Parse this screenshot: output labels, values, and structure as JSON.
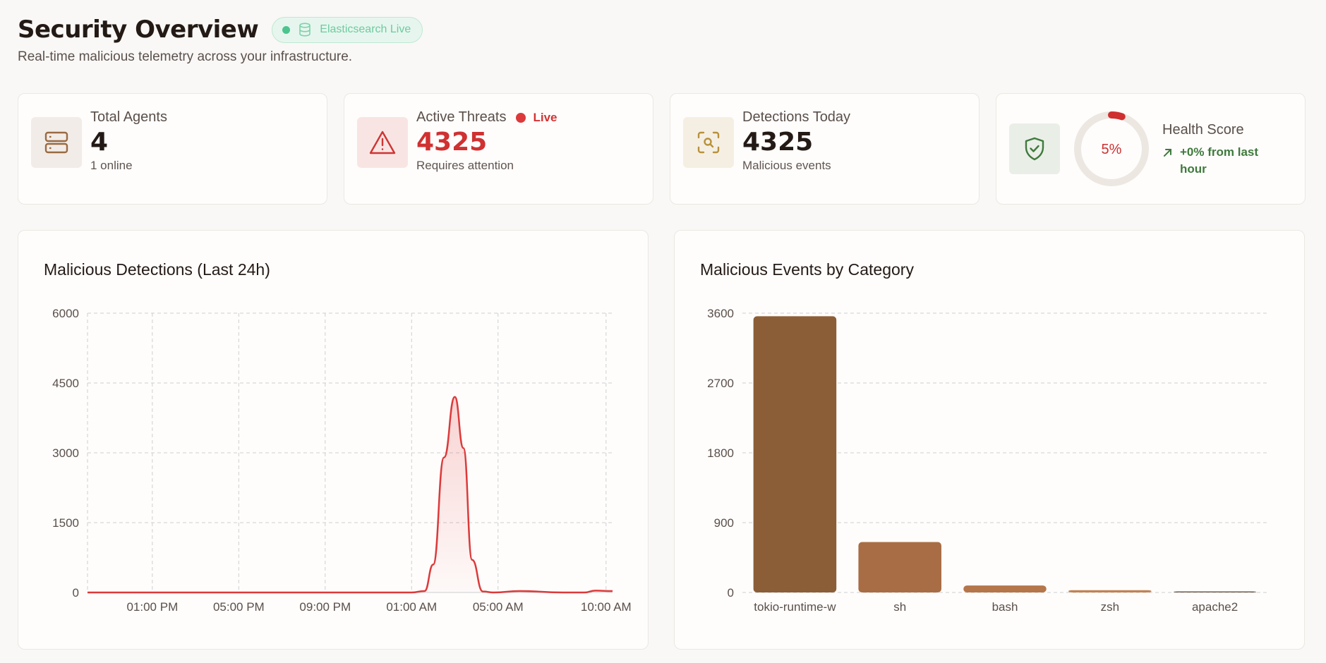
{
  "header": {
    "title": "Security Overview",
    "badge_label": "Elasticsearch Live",
    "subtitle": "Real-time malicious telemetry across your infrastructure."
  },
  "stats": {
    "total_agents": {
      "label": "Total Agents",
      "value": "4",
      "sub": "1 online"
    },
    "active_threats": {
      "label": "Active Threats",
      "live_label": "Live",
      "value": "4325",
      "sub": "Requires attention"
    },
    "detections_today": {
      "label": "Detections Today",
      "value": "4325",
      "sub": "Malicious events"
    },
    "health_score": {
      "label": "Health Score",
      "value_text": "5%",
      "value": 5,
      "trend_line1": "+0% from last",
      "trend_line2": "hour"
    }
  },
  "colors": {
    "accent_red": "#dc3a3a",
    "brown_dark": "#8b5e37",
    "brown_mid": "#a86d44",
    "brown_light": "#c28352",
    "green": "#3f7a3c"
  },
  "chart_data": [
    {
      "type": "area",
      "title": "Malicious Detections (Last 24h)",
      "xlabel": "",
      "ylabel": "",
      "ylim": [
        0,
        6000
      ],
      "y_ticks": [
        "6000",
        "4500",
        "3000",
        "1500",
        "0"
      ],
      "x_tick_labels": [
        "01:00 PM",
        "05:00 PM",
        "09:00 PM",
        "01:00 AM",
        "05:00 AM",
        "10:00 AM"
      ],
      "x_tick_hours": [
        3,
        7,
        11,
        15,
        19,
        24
      ],
      "x_range_hours": [
        0,
        24.3
      ],
      "x_hours": [
        0,
        2,
        4,
        6,
        8,
        10,
        12,
        14,
        15,
        15.6,
        16,
        16.5,
        17,
        17.4,
        17.8,
        18.3,
        18.8,
        20,
        22,
        23,
        23.5,
        24.3
      ],
      "values": [
        0,
        0,
        0,
        0,
        0,
        0,
        0,
        0,
        0,
        30,
        600,
        2900,
        4200,
        3100,
        700,
        20,
        0,
        30,
        0,
        0,
        40,
        30
      ],
      "grid": true
    },
    {
      "type": "bar",
      "title": "Malicious Events by Category",
      "categories": [
        "tokio-runtime-w",
        "sh",
        "bash",
        "zsh",
        "apache2"
      ],
      "values": [
        3560,
        650,
        90,
        30,
        8
      ],
      "ylim": [
        0,
        3600
      ],
      "y_ticks": [
        "3600",
        "2700",
        "1800",
        "900",
        "0"
      ],
      "bar_colors": [
        "#8b5e37",
        "#a86d44",
        "#b5764a",
        "#c28352",
        "#6e5a4c"
      ],
      "grid": true
    }
  ]
}
